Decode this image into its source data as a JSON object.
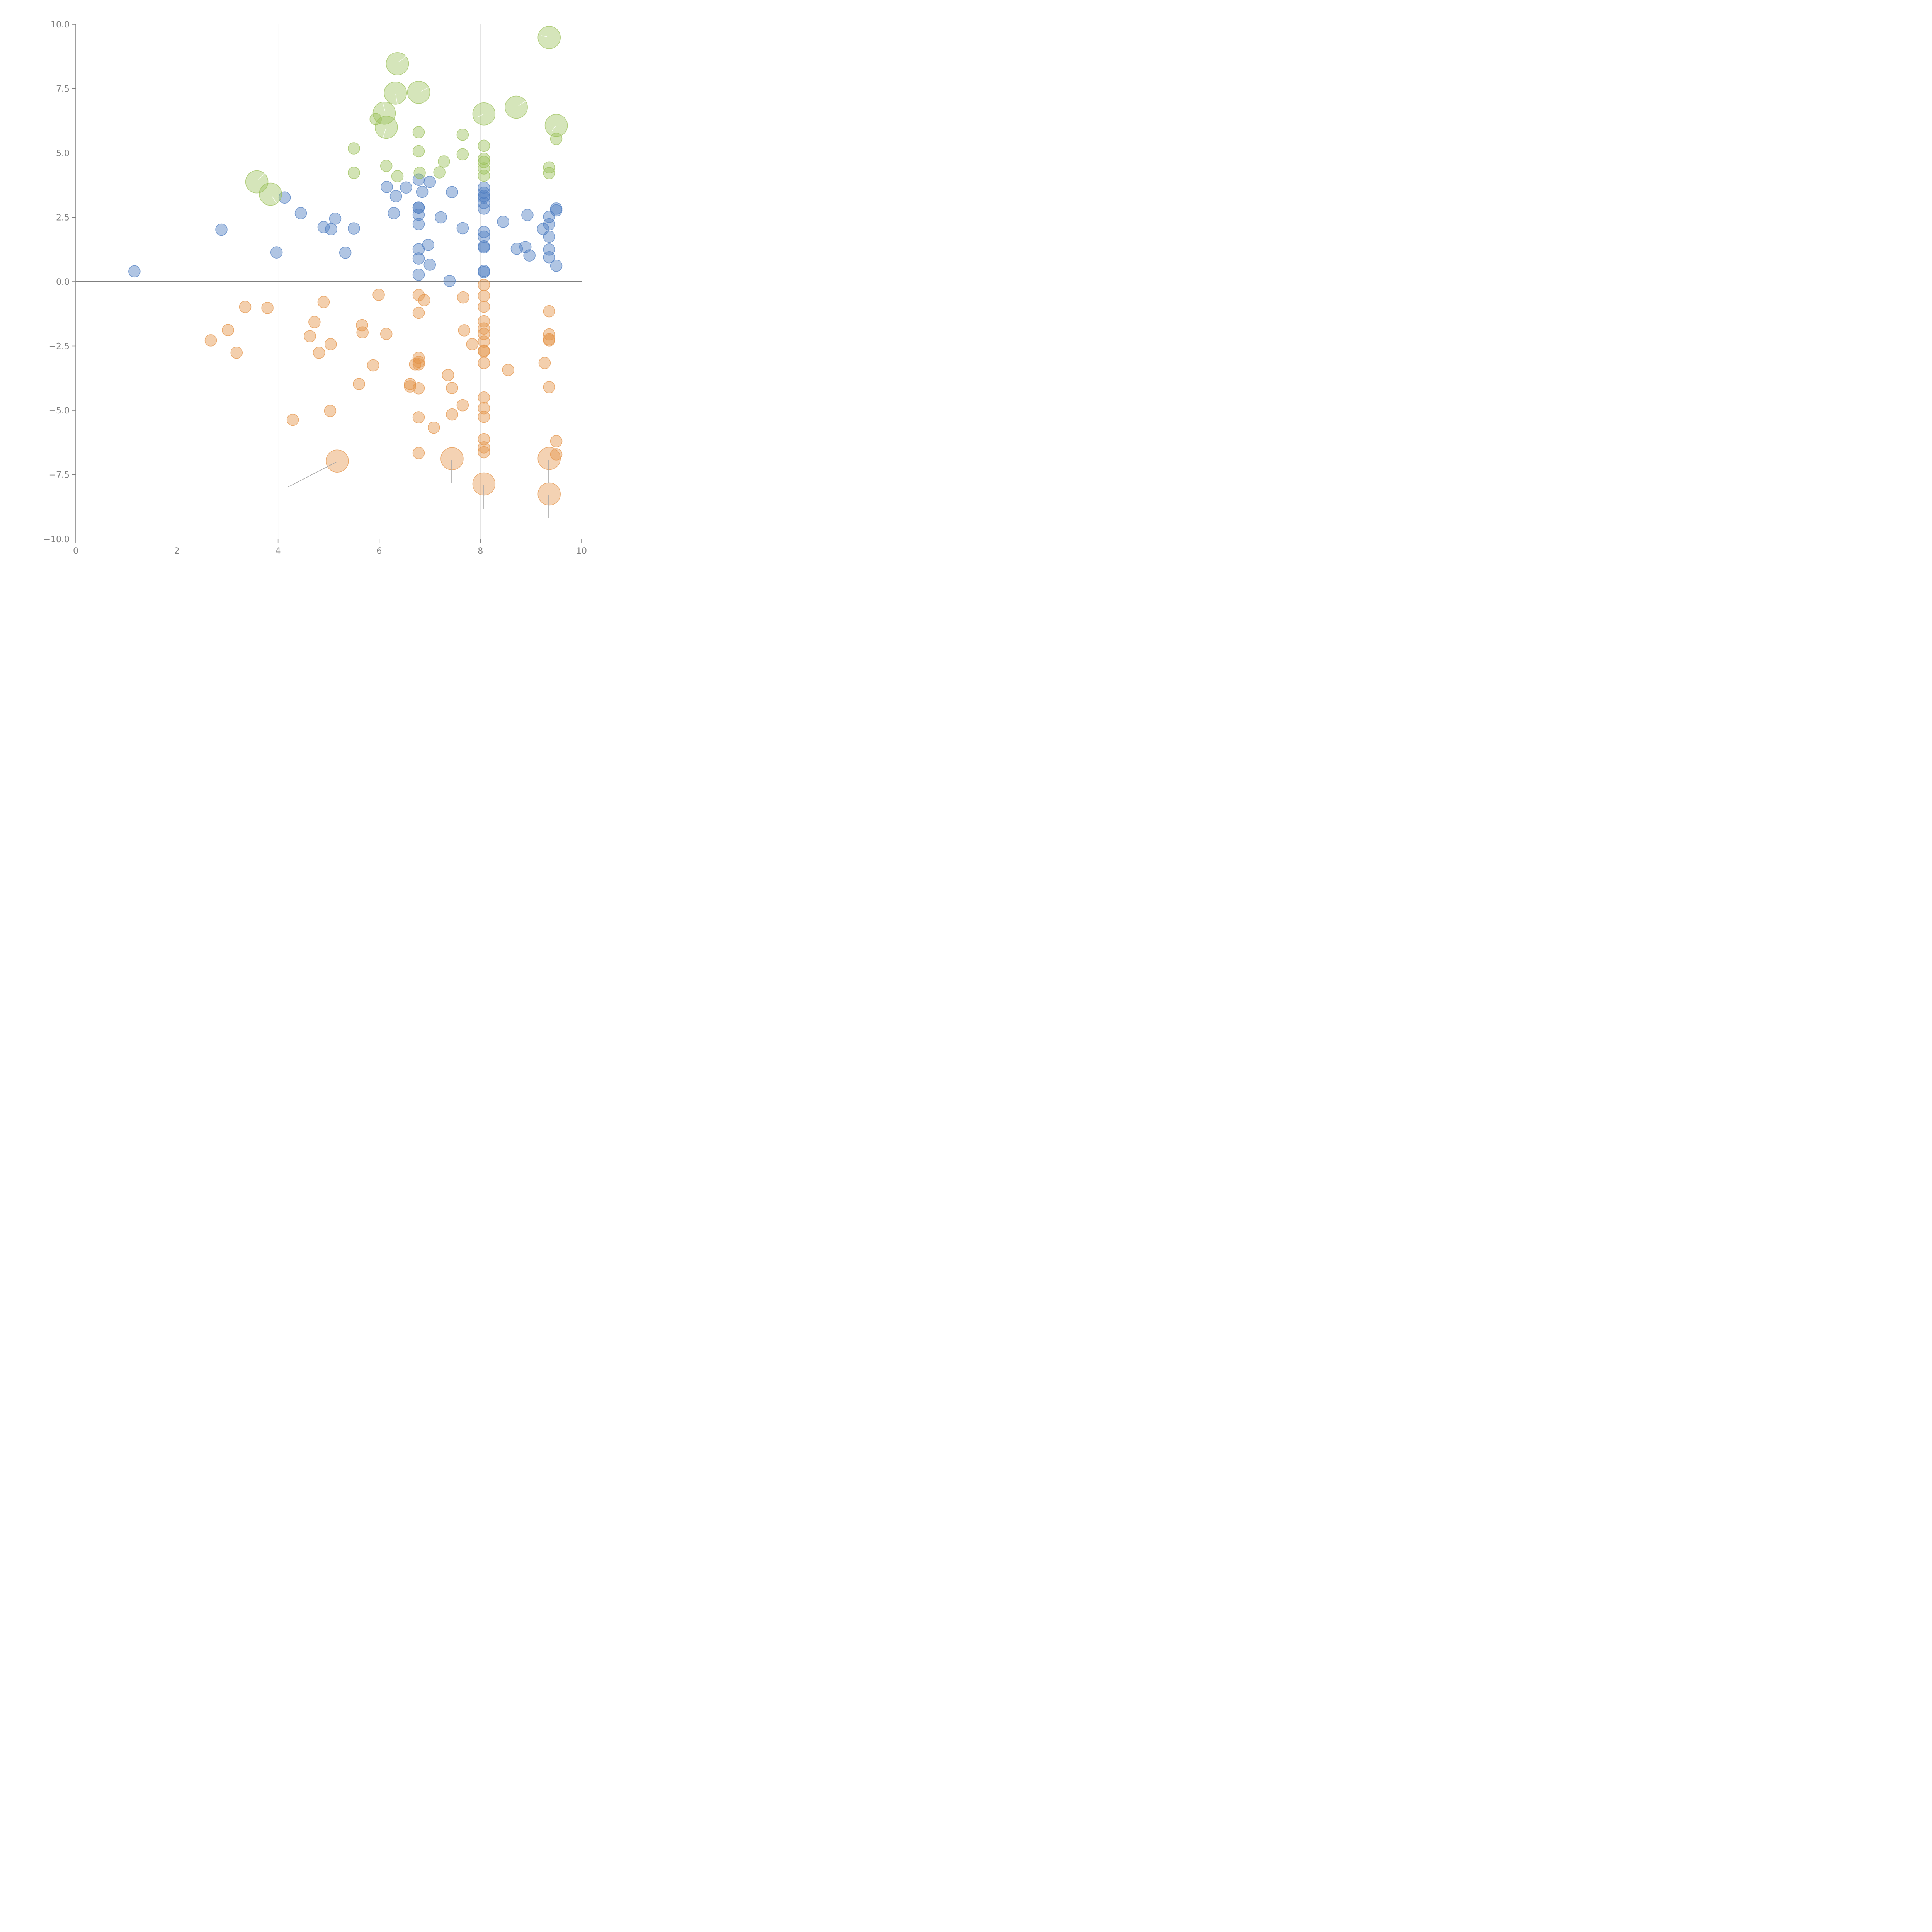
{
  "colors": {
    "background": "#ffffff",
    "axis": "#7f7f7f",
    "grid": "#d9d9d9",
    "positive_small": "#4f7ec2",
    "negative_small": "#e4944a",
    "positive_large": "#9cc05a",
    "negative_large": "#e4944a"
  },
  "chart_data": {
    "type": "scatter",
    "title": "",
    "xlabel": "",
    "ylabel": "",
    "xlim": [
      0,
      10
    ],
    "ylim": [
      -10,
      10
    ],
    "grid": "vertical",
    "x_ticks": [
      "0",
      "2",
      "4",
      "6",
      "8",
      "10"
    ],
    "y_ticks": [
      "10.0",
      "7.5",
      "5.0",
      "2.5",
      "0.0",
      "−2.5",
      "−5.0",
      "−7.5",
      "−10.0"
    ],
    "series": [
      {
        "name": "blue",
        "color": "#4f7ec2",
        "size": "small",
        "points": [
          [
            1.16,
            0.4
          ],
          [
            2.88,
            2.02
          ],
          [
            3.97,
            1.14
          ],
          [
            4.13,
            3.27
          ],
          [
            4.45,
            2.66
          ],
          [
            4.9,
            2.12
          ],
          [
            5.05,
            2.04
          ],
          [
            5.13,
            2.45
          ],
          [
            5.33,
            1.13
          ],
          [
            5.5,
            2.07
          ],
          [
            6.15,
            3.68
          ],
          [
            6.29,
            2.66
          ],
          [
            6.33,
            3.32
          ],
          [
            6.53,
            3.66
          ],
          [
            6.78,
            2.88
          ],
          [
            6.78,
            2.88
          ],
          [
            6.78,
            2.6
          ],
          [
            6.78,
            2.24
          ],
          [
            6.78,
            1.26
          ],
          [
            6.78,
            0.9
          ],
          [
            6.78,
            0.27
          ],
          [
            6.78,
            3.96
          ],
          [
            6.85,
            3.49
          ],
          [
            6.97,
            1.43
          ],
          [
            7.0,
            0.66
          ],
          [
            7.0,
            3.88
          ],
          [
            7.22,
            2.5
          ],
          [
            7.39,
            0.03
          ],
          [
            7.44,
            3.48
          ],
          [
            7.65,
            2.08
          ],
          [
            8.07,
            3.66
          ],
          [
            8.07,
            3.46
          ],
          [
            8.07,
            3.33
          ],
          [
            8.07,
            3.27
          ],
          [
            8.07,
            3.06
          ],
          [
            8.07,
            2.84
          ],
          [
            8.07,
            1.93
          ],
          [
            8.07,
            1.75
          ],
          [
            8.07,
            1.37
          ],
          [
            8.07,
            1.33
          ],
          [
            8.07,
            0.42
          ],
          [
            8.07,
            0.37
          ],
          [
            8.45,
            2.33
          ],
          [
            8.72,
            1.28
          ],
          [
            8.89,
            1.35
          ],
          [
            8.93,
            2.59
          ],
          [
            8.97,
            1.02
          ],
          [
            9.24,
            2.05
          ],
          [
            9.36,
            2.52
          ],
          [
            9.36,
            2.23
          ],
          [
            9.36,
            1.75
          ],
          [
            9.36,
            1.25
          ],
          [
            9.36,
            0.95
          ],
          [
            9.5,
            2.84
          ],
          [
            9.5,
            2.77
          ],
          [
            9.5,
            0.62
          ]
        ]
      },
      {
        "name": "orange",
        "color": "#e4944a",
        "size": "small",
        "points": [
          [
            2.67,
            -2.28
          ],
          [
            3.01,
            -1.88
          ],
          [
            3.18,
            -2.76
          ],
          [
            3.35,
            -0.98
          ],
          [
            3.79,
            -1.02
          ],
          [
            4.29,
            -5.37
          ],
          [
            4.63,
            -2.12
          ],
          [
            4.72,
            -1.57
          ],
          [
            4.81,
            -2.76
          ],
          [
            4.9,
            -0.79
          ],
          [
            5.03,
            -5.02
          ],
          [
            5.04,
            -2.43
          ],
          [
            5.6,
            -3.98
          ],
          [
            5.66,
            -1.69
          ],
          [
            5.67,
            -1.97
          ],
          [
            5.88,
            -3.25
          ],
          [
            5.99,
            -0.51
          ],
          [
            6.14,
            -2.03
          ],
          [
            6.61,
            -3.98
          ],
          [
            6.61,
            -4.07
          ],
          [
            6.71,
            -3.21
          ],
          [
            6.78,
            -0.52
          ],
          [
            6.78,
            -1.21
          ],
          [
            6.78,
            -2.96
          ],
          [
            6.78,
            -3.12
          ],
          [
            6.78,
            -3.21
          ],
          [
            6.78,
            -4.14
          ],
          [
            6.78,
            -5.27
          ],
          [
            6.78,
            -6.66
          ],
          [
            6.89,
            -0.72
          ],
          [
            7.08,
            -5.67
          ],
          [
            7.36,
            -3.63
          ],
          [
            7.44,
            -4.13
          ],
          [
            7.44,
            -5.16
          ],
          [
            7.65,
            -4.8
          ],
          [
            7.66,
            -0.61
          ],
          [
            7.68,
            -1.89
          ],
          [
            7.84,
            -2.43
          ],
          [
            8.07,
            -0.13
          ],
          [
            8.07,
            -0.55
          ],
          [
            8.07,
            -0.97
          ],
          [
            8.07,
            -1.54
          ],
          [
            8.07,
            -1.82
          ],
          [
            8.07,
            -2.03
          ],
          [
            8.07,
            -2.33
          ],
          [
            8.07,
            -2.68
          ],
          [
            8.07,
            -2.71
          ],
          [
            8.07,
            -3.16
          ],
          [
            8.07,
            -4.5
          ],
          [
            8.07,
            -4.92
          ],
          [
            8.07,
            -5.25
          ],
          [
            8.07,
            -6.12
          ],
          [
            8.07,
            -6.44
          ],
          [
            8.07,
            -6.63
          ],
          [
            8.55,
            -3.43
          ],
          [
            9.27,
            -3.16
          ],
          [
            9.36,
            -1.15
          ],
          [
            9.36,
            -2.05
          ],
          [
            9.36,
            -2.24
          ],
          [
            9.36,
            -2.28
          ],
          [
            9.36,
            -4.1
          ],
          [
            9.5,
            -6.2
          ],
          [
            9.5,
            -6.71
          ]
        ]
      },
      {
        "name": "green",
        "color": "#9cc05a",
        "size": "small",
        "points": [
          [
            5.5,
            5.18
          ],
          [
            5.5,
            4.23
          ],
          [
            5.93,
            6.32
          ],
          [
            6.14,
            4.5
          ],
          [
            6.36,
            4.1
          ],
          [
            6.78,
            5.81
          ],
          [
            6.78,
            5.07
          ],
          [
            6.8,
            4.23
          ],
          [
            7.19,
            4.25
          ],
          [
            7.28,
            4.67
          ],
          [
            7.65,
            5.71
          ],
          [
            7.65,
            4.95
          ],
          [
            8.07,
            5.28
          ],
          [
            8.07,
            4.78
          ],
          [
            8.07,
            4.65
          ],
          [
            8.07,
            4.4
          ],
          [
            8.07,
            4.12
          ],
          [
            9.36,
            4.44
          ],
          [
            9.36,
            4.22
          ],
          [
            9.5,
            5.55
          ]
        ]
      },
      {
        "name": "green-large",
        "color": "#9cc05a",
        "size": "large",
        "points": [
          [
            3.58,
            3.88
          ],
          [
            3.85,
            3.4
          ],
          [
            6.1,
            6.55
          ],
          [
            6.14,
            6.0
          ],
          [
            6.32,
            7.33
          ],
          [
            6.36,
            8.47
          ],
          [
            6.78,
            7.36
          ],
          [
            8.07,
            6.52
          ],
          [
            8.71,
            6.78
          ],
          [
            9.36,
            9.49
          ],
          [
            9.5,
            6.07
          ]
        ]
      },
      {
        "name": "orange-large",
        "color": "#e4944a",
        "size": "large",
        "points": [
          [
            5.17,
            -6.97
          ],
          [
            7.44,
            -6.88
          ],
          [
            8.07,
            -7.86
          ],
          [
            9.36,
            -6.87
          ],
          [
            9.36,
            -8.25
          ]
        ]
      }
    ],
    "zero_line": 0
  }
}
